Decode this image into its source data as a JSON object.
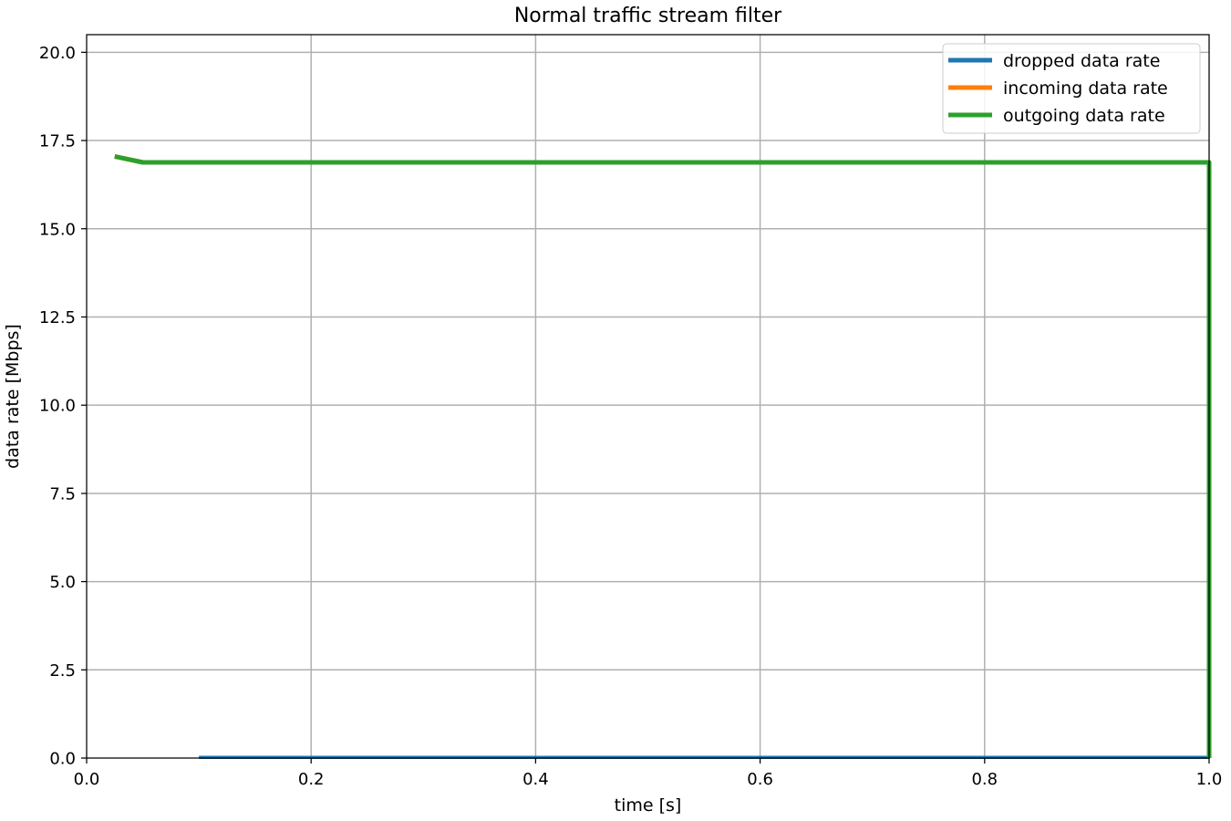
{
  "chart_data": {
    "type": "line",
    "title": "Normal traffic stream filter",
    "xlabel": "time [s]",
    "ylabel": "data rate [Mbps]",
    "xlim": [
      0.0,
      1.0
    ],
    "ylim": [
      0.0,
      20.5
    ],
    "xticks": [
      "0.0",
      "0.2",
      "0.4",
      "0.6",
      "0.8",
      "1.0"
    ],
    "xtick_values": [
      0.0,
      0.2,
      0.4,
      0.6,
      0.8,
      1.0
    ],
    "yticks": [
      "0.0",
      "2.5",
      "5.0",
      "7.5",
      "10.0",
      "12.5",
      "15.0",
      "17.5",
      "20.0"
    ],
    "ytick_values": [
      0.0,
      2.5,
      5.0,
      7.5,
      10.0,
      12.5,
      15.0,
      17.5,
      20.0
    ],
    "grid": true,
    "legend_position": "top-right",
    "series": [
      {
        "name": "dropped data rate",
        "color": "#1f77b4",
        "x": [
          0.1,
          1.0
        ],
        "y": [
          0.02,
          0.02
        ]
      },
      {
        "name": "incoming data rate",
        "color": "#ff7f0e",
        "x": [
          0.025,
          0.05,
          1.0,
          1.0
        ],
        "y": [
          17.05,
          16.88,
          16.88,
          0.0
        ]
      },
      {
        "name": "outgoing data rate",
        "color": "#2ca02c",
        "x": [
          0.025,
          0.05,
          1.0,
          1.0
        ],
        "y": [
          17.05,
          16.88,
          16.88,
          0.0
        ]
      }
    ]
  }
}
